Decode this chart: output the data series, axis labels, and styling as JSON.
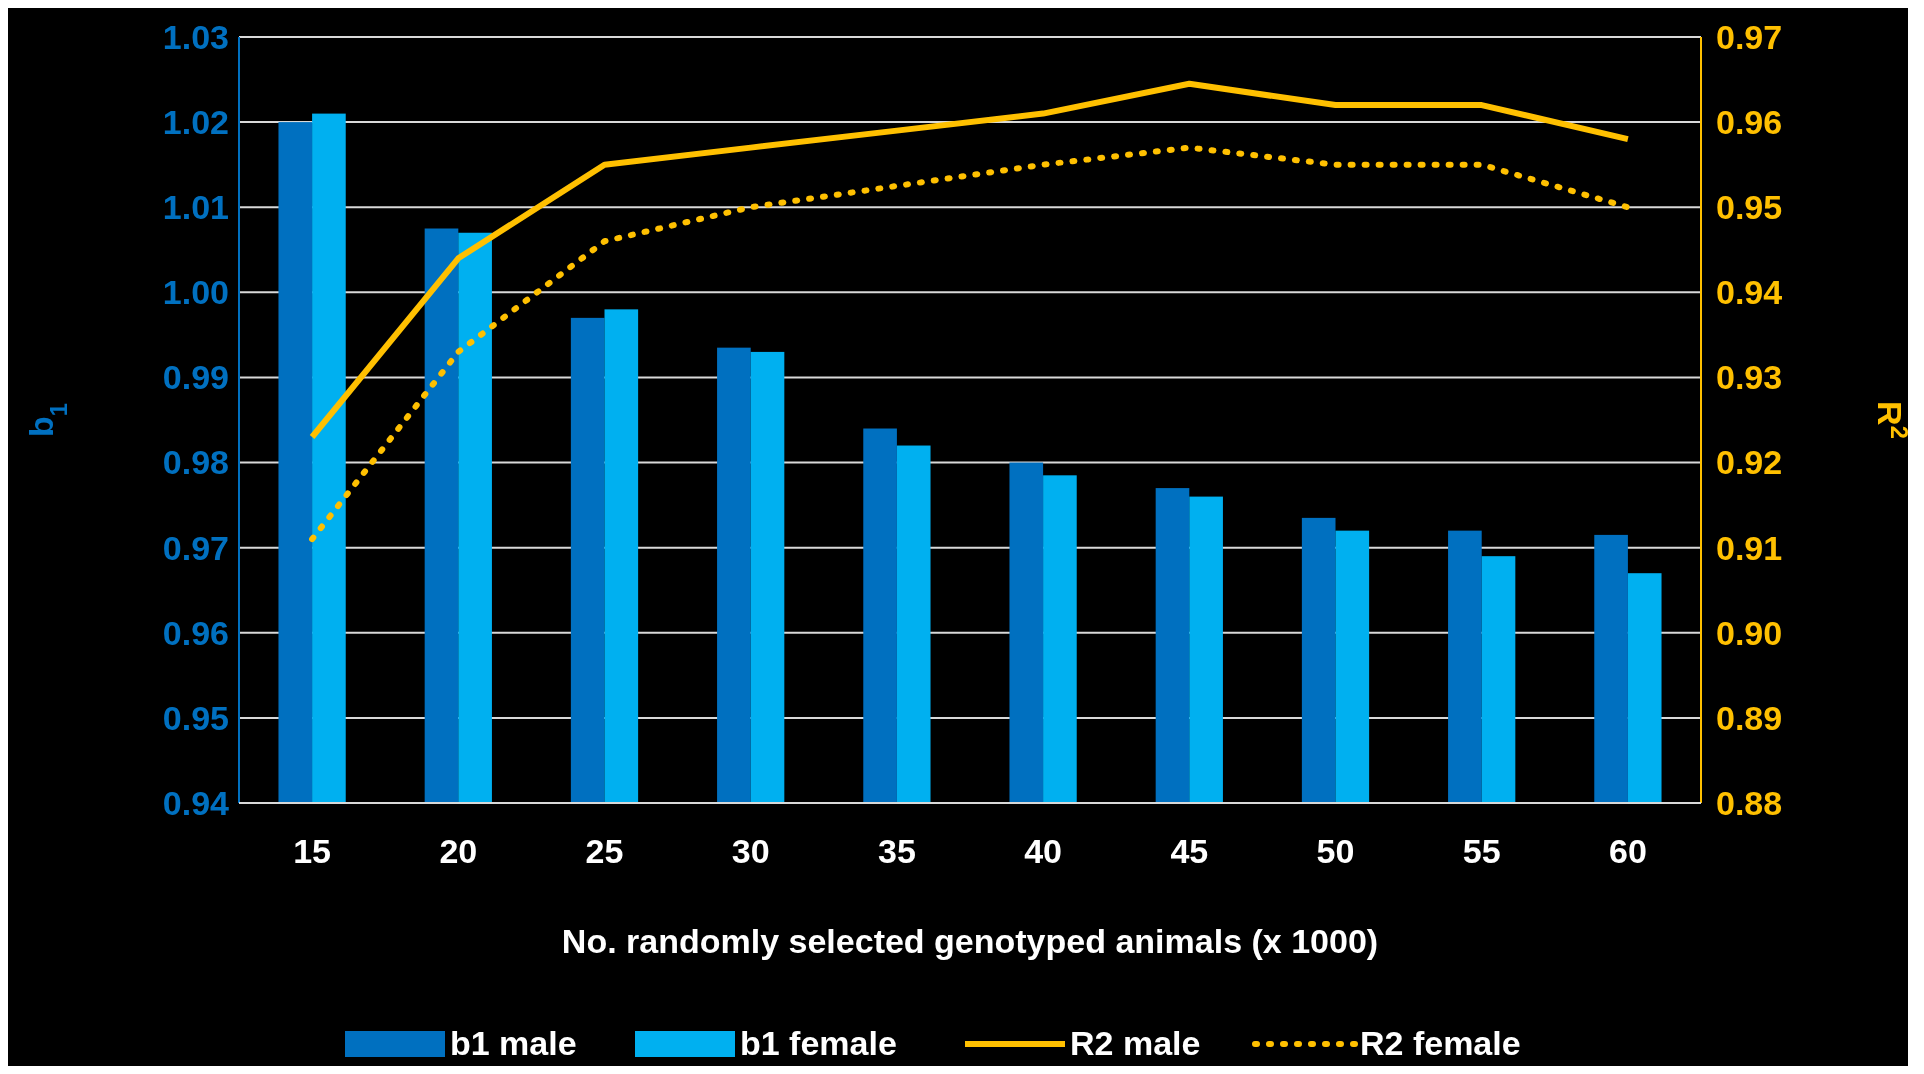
{
  "chart_data": {
    "type": "bar",
    "xlabel": "No. randomly selected genotyped animals (x 1000)",
    "ylabel": "b$_{1}$",
    "y2label": "R$^{2}$",
    "categories": [
      "15",
      "20",
      "25",
      "30",
      "35",
      "40",
      "45",
      "50",
      "55",
      "60"
    ],
    "series": [
      {
        "name": "b1 male",
        "color": "#0070c0",
        "values": [
          1.02,
          1.0075,
          0.997,
          0.9935,
          0.984,
          0.98,
          0.977,
          0.9735,
          0.972,
          0.9715
        ]
      },
      {
        "name": "b1 female",
        "color": "#00b0f0",
        "values": [
          1.021,
          1.007,
          0.998,
          0.993,
          0.982,
          0.9785,
          0.976,
          0.972,
          0.969,
          0.967
        ]
      },
      {
        "name": "R2 male",
        "type": "line",
        "axis": "y2",
        "line_style": "solid",
        "color": "#ffc000",
        "values": [
          0.923,
          0.944,
          0.955,
          0.957,
          0.959,
          0.961,
          0.9645,
          0.962,
          0.962,
          0.958
        ]
      },
      {
        "name": "R2 female",
        "type": "line",
        "axis": "y2",
        "line_style": "dotted",
        "color": "#ffc000",
        "values": [
          0.911,
          0.933,
          0.946,
          0.95,
          0.9525,
          0.955,
          0.957,
          0.955,
          0.955,
          0.95
        ]
      }
    ],
    "ylim": [
      0.94,
      1.03
    ],
    "yticks": [
      {
        "value": 0.94,
        "label": "0.94"
      },
      {
        "value": 0.95,
        "label": "0.95"
      },
      {
        "value": 0.96,
        "label": "0.96"
      },
      {
        "value": 0.97,
        "label": "0.97"
      },
      {
        "value": 0.98,
        "label": "0.98"
      },
      {
        "value": 0.99,
        "label": "0.99"
      },
      {
        "value": 1.0,
        "label": "1.00"
      },
      {
        "value": 1.01,
        "label": "1.01"
      },
      {
        "value": 1.02,
        "label": "1.02"
      },
      {
        "value": 1.03,
        "label": "1.03"
      }
    ],
    "y2lim": [
      0.88,
      0.97
    ],
    "y2ticks": [
      {
        "value": 0.88,
        "label": "0.88"
      },
      {
        "value": 0.89,
        "label": "0.89"
      },
      {
        "value": 0.9,
        "label": "0.90"
      },
      {
        "value": 0.91,
        "label": "0.91"
      },
      {
        "value": 0.92,
        "label": "0.92"
      },
      {
        "value": 0.93,
        "label": "0.93"
      },
      {
        "value": 0.94,
        "label": "0.94"
      },
      {
        "value": 0.95,
        "label": "0.95"
      },
      {
        "value": 0.96,
        "label": "0.96"
      },
      {
        "value": 0.97,
        "label": "0.97"
      }
    ],
    "grid": "y",
    "legend": "bottom",
    "marker": "none"
  }
}
